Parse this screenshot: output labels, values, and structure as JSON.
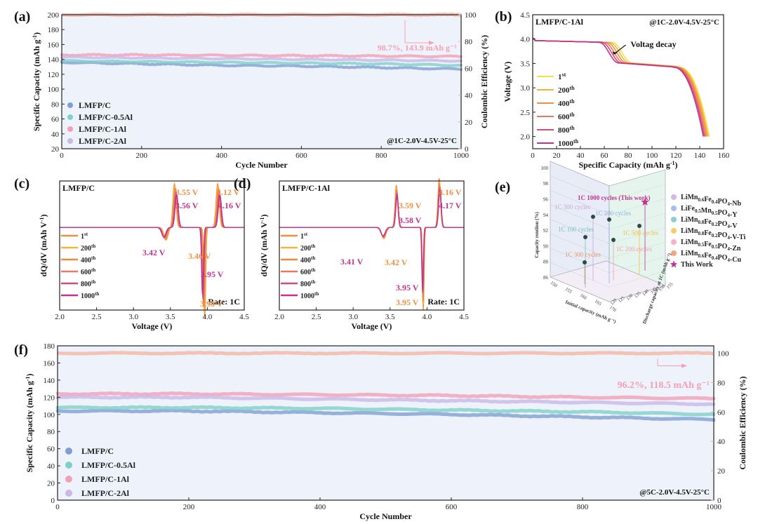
{
  "chart_data": [
    {
      "id": "a",
      "type": "scatter",
      "panel_label": "(a)",
      "xlabel": "Cycle Number",
      "ylabel": "Specific Capacity (mAh g-1)",
      "y2label": "Coulombic Efficiency (%)",
      "xlim": [
        0,
        1000
      ],
      "ylim": [
        20,
        200
      ],
      "y2lim": [
        0,
        100
      ],
      "xticks": [
        0,
        200,
        400,
        600,
        800,
        1000
      ],
      "yticks": [
        20,
        40,
        60,
        80,
        100,
        120,
        140,
        160,
        180,
        200
      ],
      "y2ticks": [
        0,
        20,
        40,
        60,
        80,
        100
      ],
      "condition": "@1C-2.0V-4.5V-25°C",
      "annotation": "98.7%, 143.9 mAh g⁻¹",
      "legend_position": "bottom-left",
      "series": [
        {
          "name": "LMFP/C",
          "color": "#7f9fd4",
          "x": [
            0,
            200,
            400,
            600,
            800,
            1000
          ],
          "values": [
            136,
            134,
            132,
            131,
            129,
            127
          ]
        },
        {
          "name": "LMFP/C-0.5Al",
          "color": "#7fd0c8",
          "x": [
            0,
            200,
            400,
            600,
            800,
            1000
          ],
          "values": [
            138,
            137,
            136,
            135,
            134,
            132
          ]
        },
        {
          "name": "LMFP/C-1Al",
          "color": "#f2a0b5",
          "x": [
            0,
            200,
            400,
            600,
            800,
            1000
          ],
          "values": [
            146,
            146,
            145.5,
            145,
            144.5,
            143.9
          ]
        },
        {
          "name": "LMFP/C-2Al",
          "color": "#c9b8e8",
          "x": [
            0,
            200,
            400,
            600,
            800,
            1000
          ],
          "values": [
            143,
            142,
            141,
            140,
            139,
            138
          ]
        }
      ],
      "ce_series": {
        "color": "#f4b8a8",
        "value": 100
      }
    },
    {
      "id": "b",
      "type": "line",
      "panel_label": "(b)",
      "title": "LMFP/C-1Al",
      "condition": "@1C-2.0V-4.5V-25°C",
      "annotation": "Voltag decay",
      "xlabel": "Specific Capacity (mAh g-1)",
      "ylabel": "Voltage (V)",
      "xlim": [
        0,
        160
      ],
      "ylim": [
        1.75,
        4.5
      ],
      "xticks": [
        0,
        20,
        40,
        60,
        80,
        100,
        120,
        140,
        160
      ],
      "yticks": [
        2.0,
        2.5,
        3.0,
        3.5,
        4.0,
        4.5
      ],
      "series": [
        {
          "name": "1",
          "sup": "st",
          "color": "#f5e04a",
          "capacity": 148
        },
        {
          "name": "200",
          "sup": "th",
          "color": "#f4b43c",
          "capacity": 147
        },
        {
          "name": "400",
          "sup": "th",
          "color": "#ef9040",
          "capacity": 146
        },
        {
          "name": "600",
          "sup": "th",
          "color": "#e47a62",
          "capacity": 145
        },
        {
          "name": "800",
          "sup": "th",
          "color": "#d44a7a",
          "capacity": 144
        },
        {
          "name": "1000",
          "sup": "th",
          "color": "#c0338f",
          "capacity": 143
        }
      ]
    },
    {
      "id": "c",
      "type": "line",
      "panel_label": "(c)",
      "title": "LMFP/C",
      "xlabel": "Voltage (V)",
      "ylabel": "dQ/dV (mAh V-1)",
      "xlim": [
        2.0,
        4.5
      ],
      "xticks": [
        2.0,
        2.5,
        3.0,
        3.5,
        4.0,
        4.5
      ],
      "rate": "Rate: 1C",
      "peak_labels": [
        {
          "text": "3.55 V",
          "v": 3.55,
          "color": "#ef9040"
        },
        {
          "text": "3.56 V",
          "v": 3.56,
          "color": "#c0338f"
        },
        {
          "text": "4.12 V",
          "v": 4.12,
          "color": "#ef9040"
        },
        {
          "text": "4.16 V",
          "v": 4.16,
          "color": "#c0338f"
        },
        {
          "text": "3.42 V",
          "v": 3.42,
          "color": "#c0338f"
        },
        {
          "text": "3.46 V",
          "v": 3.46,
          "color": "#ef9040"
        },
        {
          "text": "3.95 V",
          "v": 3.95,
          "color": "#c0338f"
        },
        {
          "text": "3.98 V",
          "v": 3.98,
          "color": "#ef9040"
        }
      ],
      "series": [
        {
          "name": "1",
          "sup": "st",
          "color": "#ef9040",
          "shift": 0.0
        },
        {
          "name": "200",
          "sup": "th",
          "color": "#f4b43c",
          "shift": 0.006
        },
        {
          "name": "400",
          "sup": "th",
          "color": "#ef8a3a",
          "shift": 0.012
        },
        {
          "name": "600",
          "sup": "th",
          "color": "#e47a62",
          "shift": 0.018
        },
        {
          "name": "800",
          "sup": "th",
          "color": "#d44a7a",
          "shift": 0.024
        },
        {
          "name": "1000",
          "sup": "th",
          "color": "#c0338f",
          "shift": 0.03
        }
      ]
    },
    {
      "id": "d",
      "type": "line",
      "panel_label": "(d)",
      "title": "LMFP/C-1Al",
      "xlabel": "Voltage (V)",
      "ylabel": "dQ/dV (mAh V-1)",
      "xlim": [
        2.0,
        4.5
      ],
      "xticks": [
        2.0,
        2.5,
        3.0,
        3.5,
        4.0,
        4.5
      ],
      "rate": "Rate: 1C",
      "peak_labels": [
        {
          "text": "4.16 V",
          "v": 4.16,
          "color": "#ef9040"
        },
        {
          "text": "4.17 V",
          "v": 4.17,
          "color": "#c0338f"
        },
        {
          "text": "3.59 V",
          "v": 3.59,
          "color": "#ef9040"
        },
        {
          "text": "3.58 V",
          "v": 3.58,
          "color": "#c0338f"
        },
        {
          "text": "3.41 V",
          "v": 3.41,
          "color": "#c0338f"
        },
        {
          "text": "3.42 V",
          "v": 3.42,
          "color": "#ef9040"
        },
        {
          "text": "3.95 V",
          "v": 3.95,
          "color": "#c0338f"
        },
        {
          "text": "3.95 V",
          "v": 3.95,
          "color": "#ef9040"
        }
      ],
      "series": [
        {
          "name": "1",
          "sup": "st",
          "color": "#ef9040",
          "shift": 0.0
        },
        {
          "name": "200",
          "sup": "th",
          "color": "#f4b43c",
          "shift": 0.002
        },
        {
          "name": "400",
          "sup": "th",
          "color": "#ef8a3a",
          "shift": 0.004
        },
        {
          "name": "600",
          "sup": "th",
          "color": "#e47a62",
          "shift": 0.006
        },
        {
          "name": "800",
          "sup": "th",
          "color": "#d44a7a",
          "shift": 0.008
        },
        {
          "name": "1000",
          "sup": "th",
          "color": "#c0338f",
          "shift": 0.01
        }
      ]
    },
    {
      "id": "e",
      "type": "scatter",
      "panel_label": "(e)",
      "xlabel": "Initial capacity (mAh g⁻¹)",
      "ylabel": "Capacity rentiion (%)",
      "zlabel": "Discharge capacity at 1C (mAh g⁻¹)",
      "zticks": [
        86,
        88,
        90,
        92,
        94,
        96,
        98,
        100
      ],
      "xticks": [
        150,
        155,
        160,
        165,
        170
      ],
      "yticks": [
        120,
        125,
        130,
        135,
        140,
        145,
        150,
        155
      ],
      "points": [
        {
          "label": "1C 1000 cycles (This work)",
          "name": "This Work",
          "color": "#c0338f",
          "marker": "star"
        },
        {
          "label": "1C 300 cycles",
          "name": "LiMn0.6Fe0.4PO4-Nb",
          "color": "#c9a8d8"
        },
        {
          "label": "1C 200 cycles",
          "name": "LiFe0.5Mn0.5PO4-Y",
          "color": "#8fb0e0"
        },
        {
          "label": "1C 100 cycles",
          "name": "LiMn0.8Fe0.2PO4-V",
          "color": "#6fc0c0"
        },
        {
          "label": "1C 500 cycles",
          "name": "LiMn0.8Fe0.2PO4-V-Ti",
          "color": "#f0c040"
        },
        {
          "label": "1C 200 cycles",
          "name": "LiMn0.5Fe0.5PO4-Zn",
          "color": "#f2a0b5"
        },
        {
          "label": "1C 300 cycles",
          "name": "LiMn0.6Fe0.4PO4-Cu",
          "color": "#ef9060"
        }
      ],
      "legend": [
        {
          "text": "LiMn0.6Fe0.4PO4-Nb",
          "color": "#c9a8d8"
        },
        {
          "text": "LiFe0.5Mn0.5PO4-Y",
          "color": "#8fb0e0"
        },
        {
          "text": "LiMn0.8Fe0.2PO4-V",
          "color": "#6fc0c0"
        },
        {
          "text": "LiMn0.8Fe0.2PO4-V-Ti",
          "color": "#f0c040"
        },
        {
          "text": "LiMn0.5Fe0.5PO4-Zn",
          "color": "#f2a0b5"
        },
        {
          "text": "LiMn0.6Fe0.4PO4-Cu",
          "color": "#ef9060"
        },
        {
          "text": "This Work",
          "color": "#c0338f"
        }
      ]
    },
    {
      "id": "f",
      "type": "scatter",
      "panel_label": "(f)",
      "xlabel": "Cycle Number",
      "ylabel": "Specific Capacity (mAh g-1)",
      "y2label": "Coulombic Efficiency (%)",
      "xlim": [
        0,
        1000
      ],
      "ylim": [
        0,
        180
      ],
      "y2lim": [
        0,
        105
      ],
      "xticks": [
        0,
        200,
        400,
        600,
        800,
        1000
      ],
      "yticks": [
        0,
        20,
        40,
        60,
        80,
        100,
        120,
        140,
        160,
        180
      ],
      "y2ticks": [
        0,
        20,
        40,
        60,
        80,
        100
      ],
      "condition": "@5C-2.0V-4.5V-25°C",
      "annotation": "96.2%, 118.5 mAh g⁻¹",
      "legend_position": "bottom-left",
      "series": [
        {
          "name": "LMFP/C",
          "color": "#7f9fd4",
          "x": [
            0,
            200,
            400,
            600,
            800,
            1000
          ],
          "values": [
            104,
            104,
            102,
            100,
            97,
            94
          ]
        },
        {
          "name": "LMFP/C-0.5Al",
          "color": "#7fd0c8",
          "x": [
            0,
            200,
            400,
            600,
            800,
            1000
          ],
          "values": [
            108,
            108,
            107,
            105,
            103,
            100
          ]
        },
        {
          "name": "LMFP/C-1Al",
          "color": "#f2a0b5",
          "x": [
            0,
            200,
            400,
            600,
            800,
            1000
          ],
          "values": [
            124,
            124,
            123,
            122,
            120,
            118.5
          ]
        },
        {
          "name": "LMFP/C-2Al",
          "color": "#c9b8e8",
          "x": [
            0,
            200,
            400,
            600,
            800,
            1000
          ],
          "values": [
            120,
            120,
            118,
            116,
            114,
            112
          ]
        }
      ],
      "ce_series": {
        "color": "#f4b8a8",
        "value": 100
      }
    }
  ]
}
